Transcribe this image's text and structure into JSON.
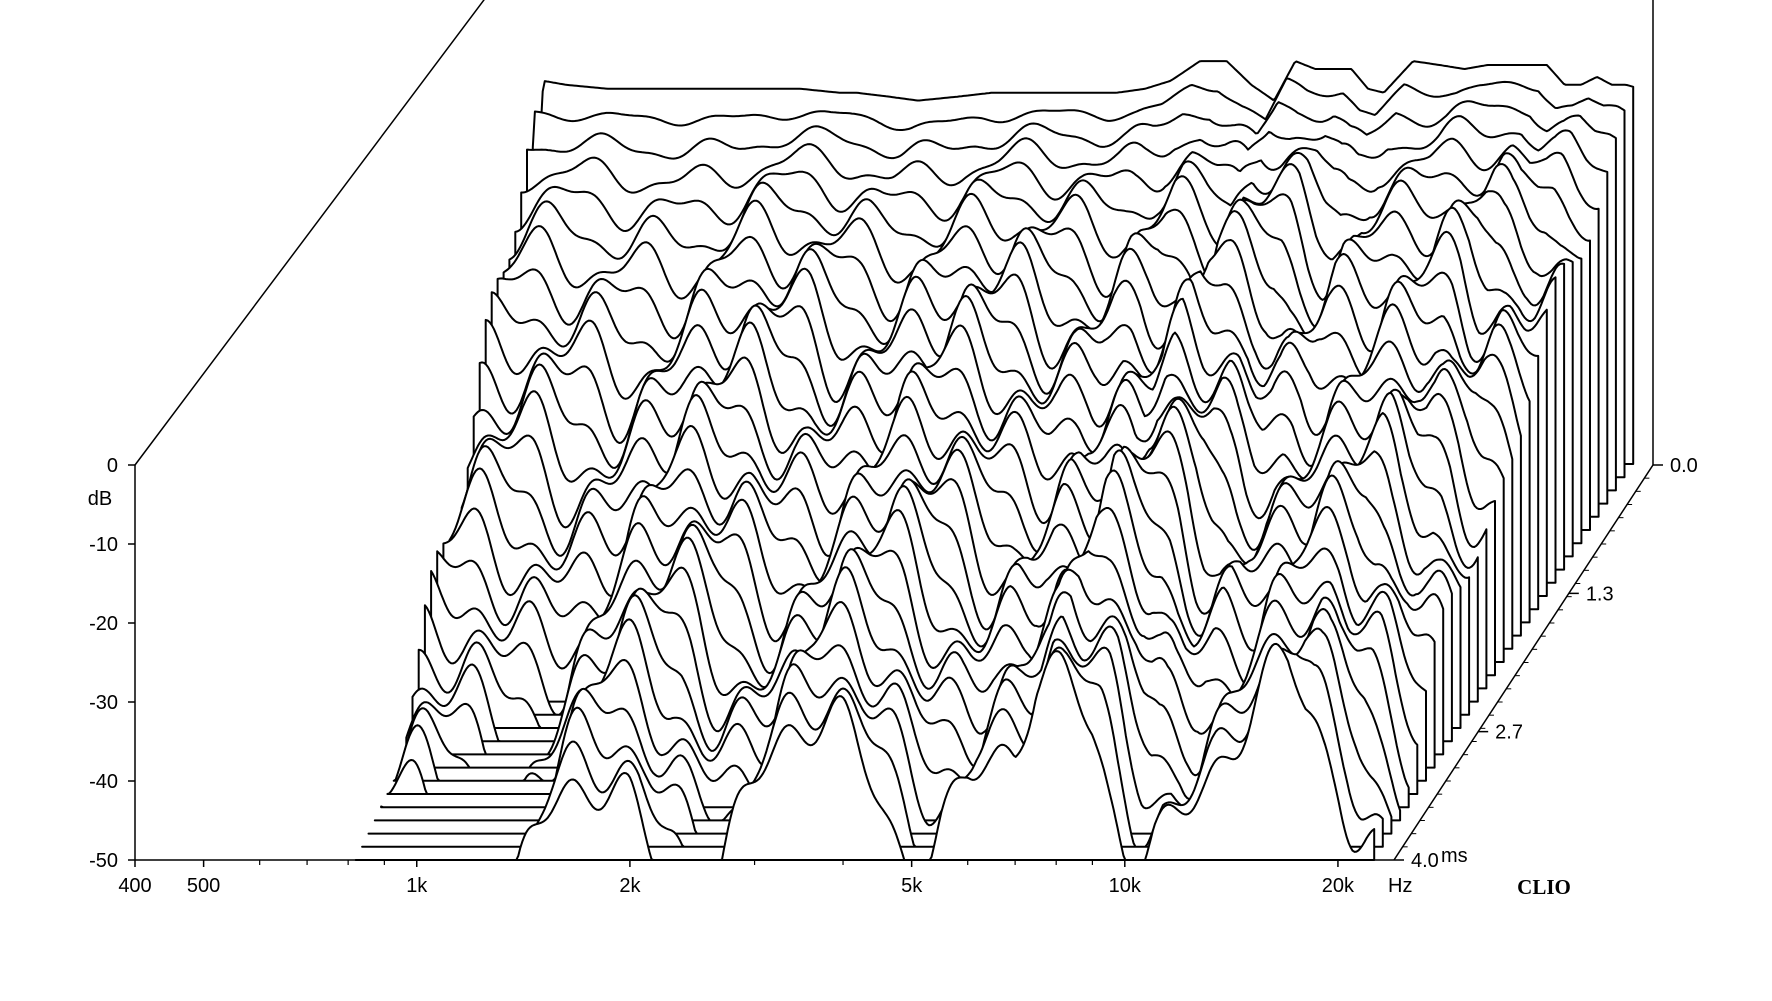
{
  "chart_data": {
    "type": "waterfall",
    "x_scale": "log",
    "xlim": [
      400,
      24000
    ],
    "x_ticks": [
      400,
      500,
      1000,
      2000,
      5000,
      10000,
      20000
    ],
    "x_tick_labels": [
      "400",
      "500",
      "1k",
      "2k",
      "5k",
      "10k",
      "20k"
    ],
    "x_unit_label": "Hz",
    "x_minor_ticks": [
      600,
      700,
      800,
      900,
      3000,
      4000,
      6000,
      7000,
      8000,
      9000
    ],
    "ylim": [
      -50,
      0
    ],
    "y_ticks": [
      0,
      -10,
      -20,
      -30,
      -40,
      -50
    ],
    "y_tick_labels": [
      "0",
      "-10",
      "-20",
      "-30",
      "-40",
      "-50"
    ],
    "ylabel": "dB",
    "z_range": [
      0.0,
      4.0
    ],
    "z_ticks": [
      0.0,
      1.3,
      2.7,
      4.0
    ],
    "z_tick_labels": [
      "0.0",
      "1.3",
      "2.7",
      "4.0"
    ],
    "z_unit_label": "ms",
    "slice_count": 31,
    "brand": "CLIO",
    "line_color": "#000000",
    "background_color": "#ffffff",
    "profile": {
      "freq": [
        400,
        500,
        560,
        600,
        650,
        700,
        800,
        900,
        1000,
        1100,
        1200,
        1400,
        1500,
        1700,
        1800,
        2000,
        2200,
        2500,
        2800,
        3000,
        3300,
        3600,
        3900,
        4200,
        4600,
        5000,
        5500,
        6000,
        6500,
        7000,
        7500,
        8000,
        8500,
        9000,
        9500,
        10000,
        11000,
        12000,
        13000,
        14000,
        15000,
        16000,
        17000,
        18000,
        19000,
        20000,
        21000,
        22000,
        24000
      ],
      "db": [
        -60,
        -60,
        -60,
        -60,
        -1.5,
        -2,
        -2.5,
        -2.5,
        -2.5,
        -2.5,
        -2.5,
        -2.5,
        -2.5,
        -3,
        -3,
        -3.5,
        -4,
        -3.5,
        -3,
        -3,
        -3,
        -3,
        -3,
        -3,
        -2.5,
        -1.5,
        1,
        1,
        -2,
        -4,
        1,
        0,
        0,
        0,
        -2.5,
        -3,
        1,
        0.5,
        0,
        0.5,
        0.5,
        0.5,
        0.5,
        -2,
        -2,
        -1,
        -2,
        -2,
        -3
      ]
    },
    "series": [
      {
        "name": "0.0",
        "start_freq": 650,
        "db": [
          -1.4,
          -1.8,
          -2.3,
          -2.6,
          -2.6,
          -2.6,
          -2.5,
          -2.8,
          -3.0,
          -3.5,
          -4.2,
          -3.8,
          -3.2,
          -3.0,
          -3.1,
          -3.0,
          -3.1,
          -3.2,
          -2.9,
          -1.3,
          1.0,
          1.2,
          -2.0,
          -3.8,
          1.2,
          0.2,
          0.3,
          0.2,
          -2.5,
          -3.1,
          1.1,
          0.4,
          0.1,
          0.6,
          0.4,
          0.5,
          0.3,
          -2.2,
          -2.1,
          -1.1,
          -2.2,
          -2.0,
          -3.2
        ]
      },
      {
        "name": "4.0 ms",
        "start_freq": 3000,
        "db": [
          -48,
          -47,
          -46,
          -47,
          -48,
          -49
        ]
      }
    ]
  }
}
